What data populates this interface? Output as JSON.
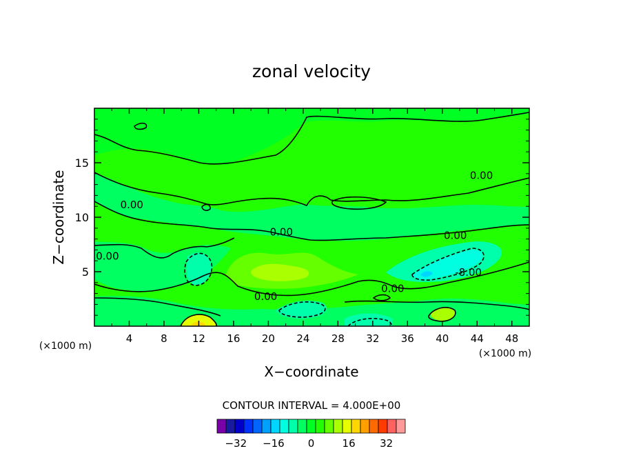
{
  "chart_data": {
    "type": "heatmap",
    "title": "zonal velocity",
    "xlabel": "X−coordinate",
    "ylabel": "Z−coordinate",
    "x_unit_label": "(×1000 m)",
    "y_unit_label": "(×1000 m)",
    "xlim": [
      0,
      50
    ],
    "ylim": [
      0,
      20
    ],
    "x_ticks": [
      4,
      8,
      12,
      16,
      20,
      24,
      28,
      32,
      36,
      40,
      44,
      48
    ],
    "y_ticks": [
      5,
      10,
      15
    ],
    "contour_interval_text": "CONTOUR INTERVAL = 4.000E+00",
    "contour_labels": [
      {
        "text": "0.00",
        "x": 4.3,
        "y": 11.2
      },
      {
        "text": "0.00",
        "x": 21.5,
        "y": 8.7
      },
      {
        "text": "0.00",
        "x": 19.7,
        "y": 2.8
      },
      {
        "text": "0.00",
        "x": 34.3,
        "y": 3.5
      },
      {
        "text": "0.00",
        "x": 41.5,
        "y": 8.4
      },
      {
        "text": "0.00",
        "x": 44.5,
        "y": 13.9
      },
      {
        "text": "0.00",
        "x": 1.5,
        "y": 6.5
      },
      {
        "text": "-8.00",
        "x": 43.0,
        "y": 5.0
      }
    ],
    "colorbar": {
      "levels": [
        -40,
        -36,
        -32,
        -28,
        -24,
        -20,
        -16,
        -12,
        -8,
        -4,
        0,
        4,
        8,
        12,
        16,
        20,
        24,
        28,
        32,
        36,
        40
      ],
      "colors": [
        "#7a00a8",
        "#1a1aa0",
        "#0000c8",
        "#0032ff",
        "#0066ff",
        "#00a0ff",
        "#00d6ff",
        "#00ffe0",
        "#00ffaa",
        "#00ff60",
        "#00ff22",
        "#22ff00",
        "#66ff00",
        "#aaff00",
        "#e6ff00",
        "#ffd600",
        "#ffa000",
        "#ff6a00",
        "#ff3c00",
        "#ff6060",
        "#ff9a9a"
      ],
      "tick_values": [
        -32,
        -16,
        0,
        16,
        32
      ],
      "tick_labels": [
        "−32",
        "−16",
        "0",
        "16",
        "32"
      ]
    }
  }
}
